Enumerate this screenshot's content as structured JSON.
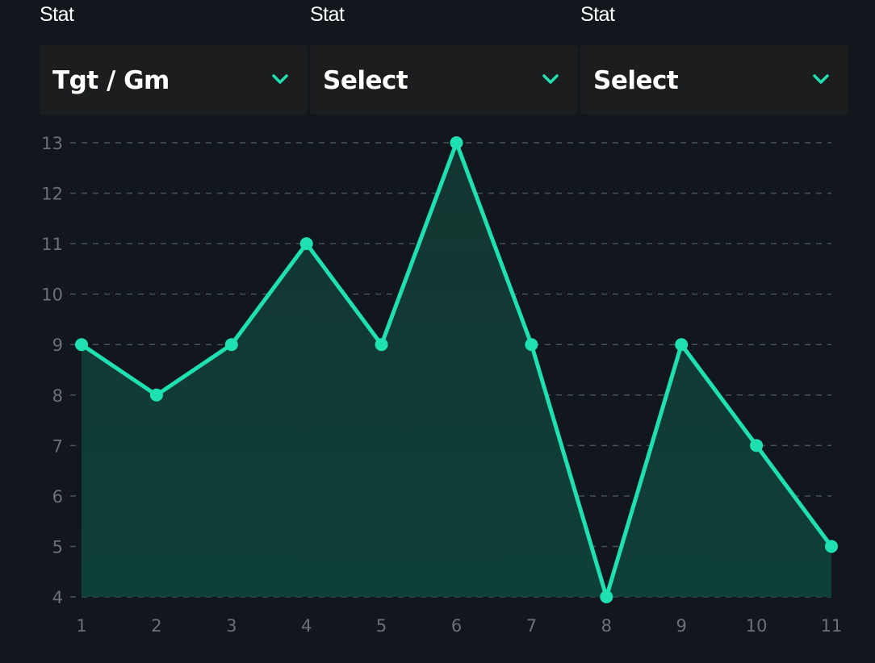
{
  "selectors": [
    {
      "label": "Stat",
      "value": "Tgt / Gm"
    },
    {
      "label": "Stat",
      "value": "Select"
    },
    {
      "label": "Stat",
      "value": "Select"
    }
  ],
  "icons": {
    "dropdown": "chevron-down-icon"
  },
  "colors": {
    "background": "#12171e",
    "line": "#1fe0b0",
    "fill_top": "#153531",
    "fill_bottom": "#0e4038",
    "grid": "#45525a",
    "tick": "#6b7078"
  },
  "chart_data": {
    "type": "area",
    "x": [
      1,
      2,
      3,
      4,
      5,
      6,
      7,
      8,
      9,
      10,
      11
    ],
    "y": [
      9,
      8,
      9,
      11,
      9,
      13,
      9,
      4,
      9,
      7,
      5
    ],
    "ylim": [
      4,
      13
    ],
    "yticks": [
      4,
      5,
      6,
      7,
      8,
      9,
      10,
      11,
      12,
      13
    ],
    "xticks": [
      1,
      2,
      3,
      4,
      5,
      6,
      7,
      8,
      9,
      10,
      11
    ],
    "grid": "horizontal dashed",
    "legend": "none"
  }
}
